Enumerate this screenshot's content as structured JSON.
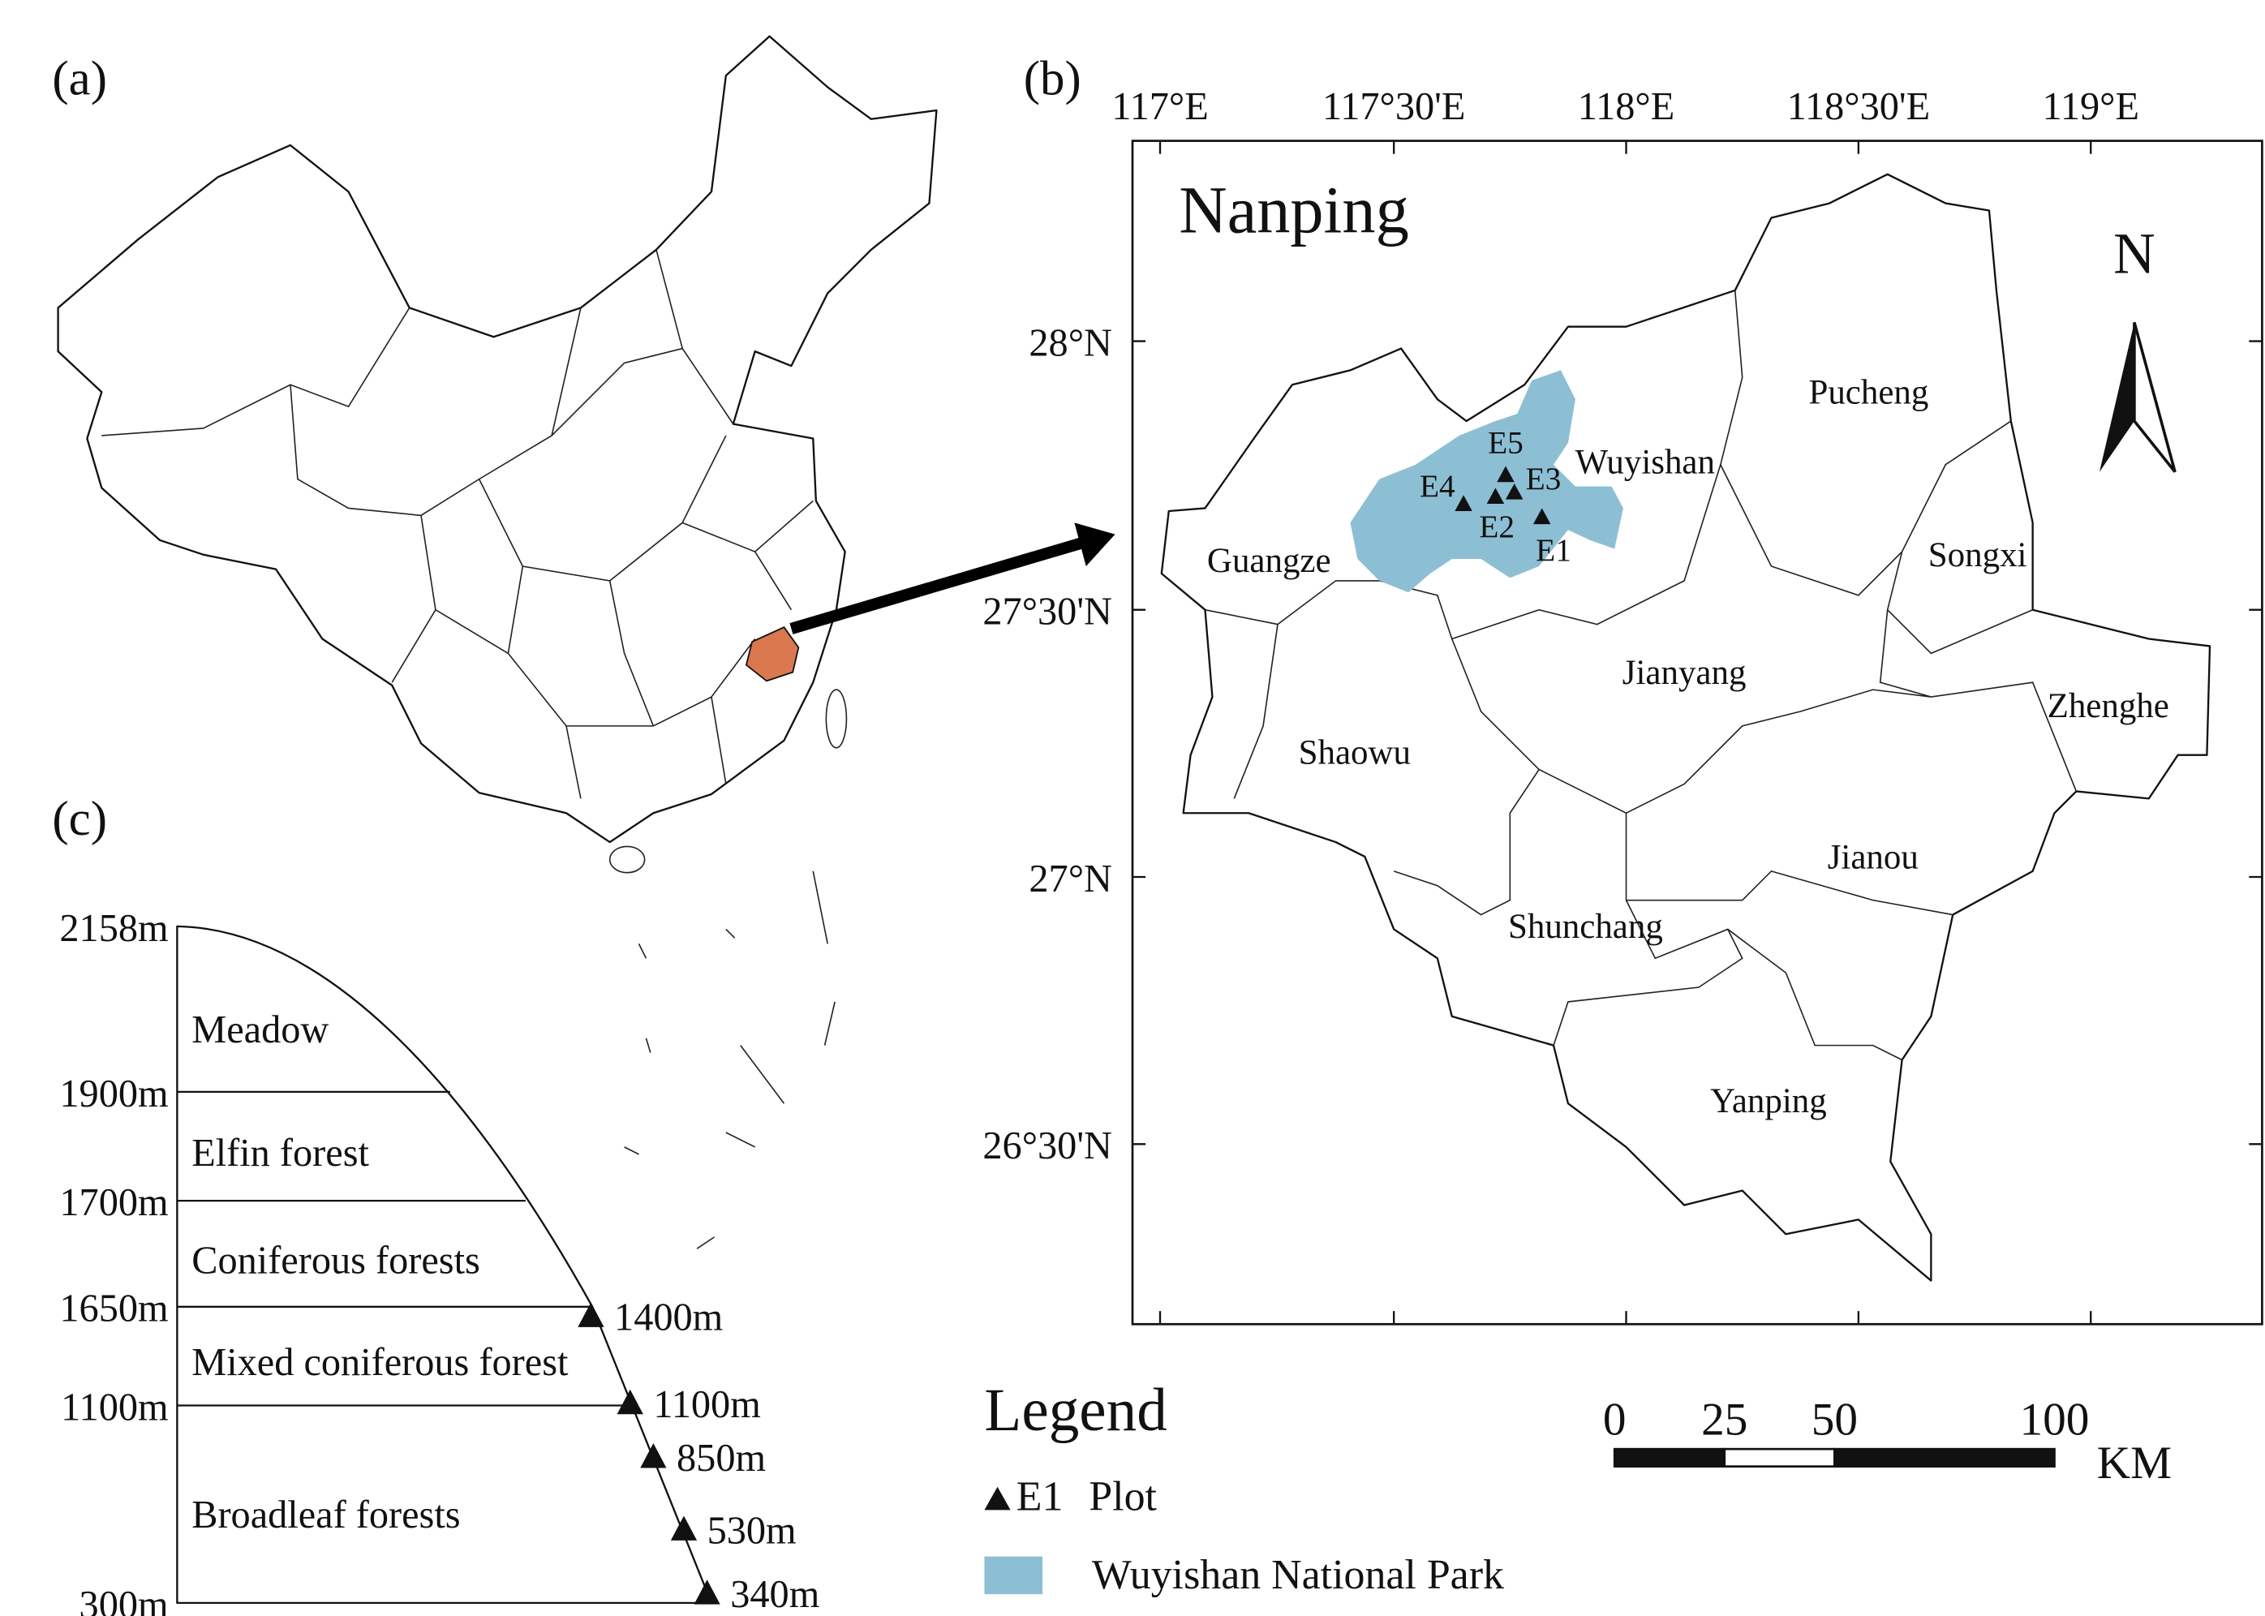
{
  "panels": {
    "a": "(a)",
    "b": "(b)",
    "c": "(c)"
  },
  "map_b": {
    "title": "Nanping",
    "north": "N",
    "lon_labels": [
      "117°E",
      "117°30'E",
      "118°E",
      "118°30'E",
      "119°E"
    ],
    "lat_labels": [
      "28°N",
      "27°30'N",
      "27°N",
      "26°30'N"
    ],
    "counties": [
      "Pucheng",
      "Wuyishan",
      "Songxi",
      "Guangze",
      "Jianyang",
      "Zhenghe",
      "Shaowu",
      "Jianou",
      "Shunchang",
      "Yanping"
    ],
    "plots": [
      "E5",
      "E4",
      "E3",
      "E2",
      "E1"
    ]
  },
  "legend": {
    "title": "Legend",
    "plot_symbol": "E1",
    "plot": "Plot",
    "park": "Wuyishan National Park"
  },
  "scale_bar": {
    "ticks": [
      0,
      25,
      50,
      100
    ],
    "unit": "KM"
  },
  "profile": {
    "elevations": [
      "2158m",
      "1900m",
      "1700m",
      "1650m",
      "1100m",
      "300m"
    ],
    "zones": [
      "Meadow",
      "Elfin forest",
      "Coniferous forests",
      "Mixed coniferous forest",
      "Broadleaf forests"
    ],
    "plots": [
      "1400m",
      "1100m",
      "850m",
      "530m",
      "340m"
    ]
  }
}
